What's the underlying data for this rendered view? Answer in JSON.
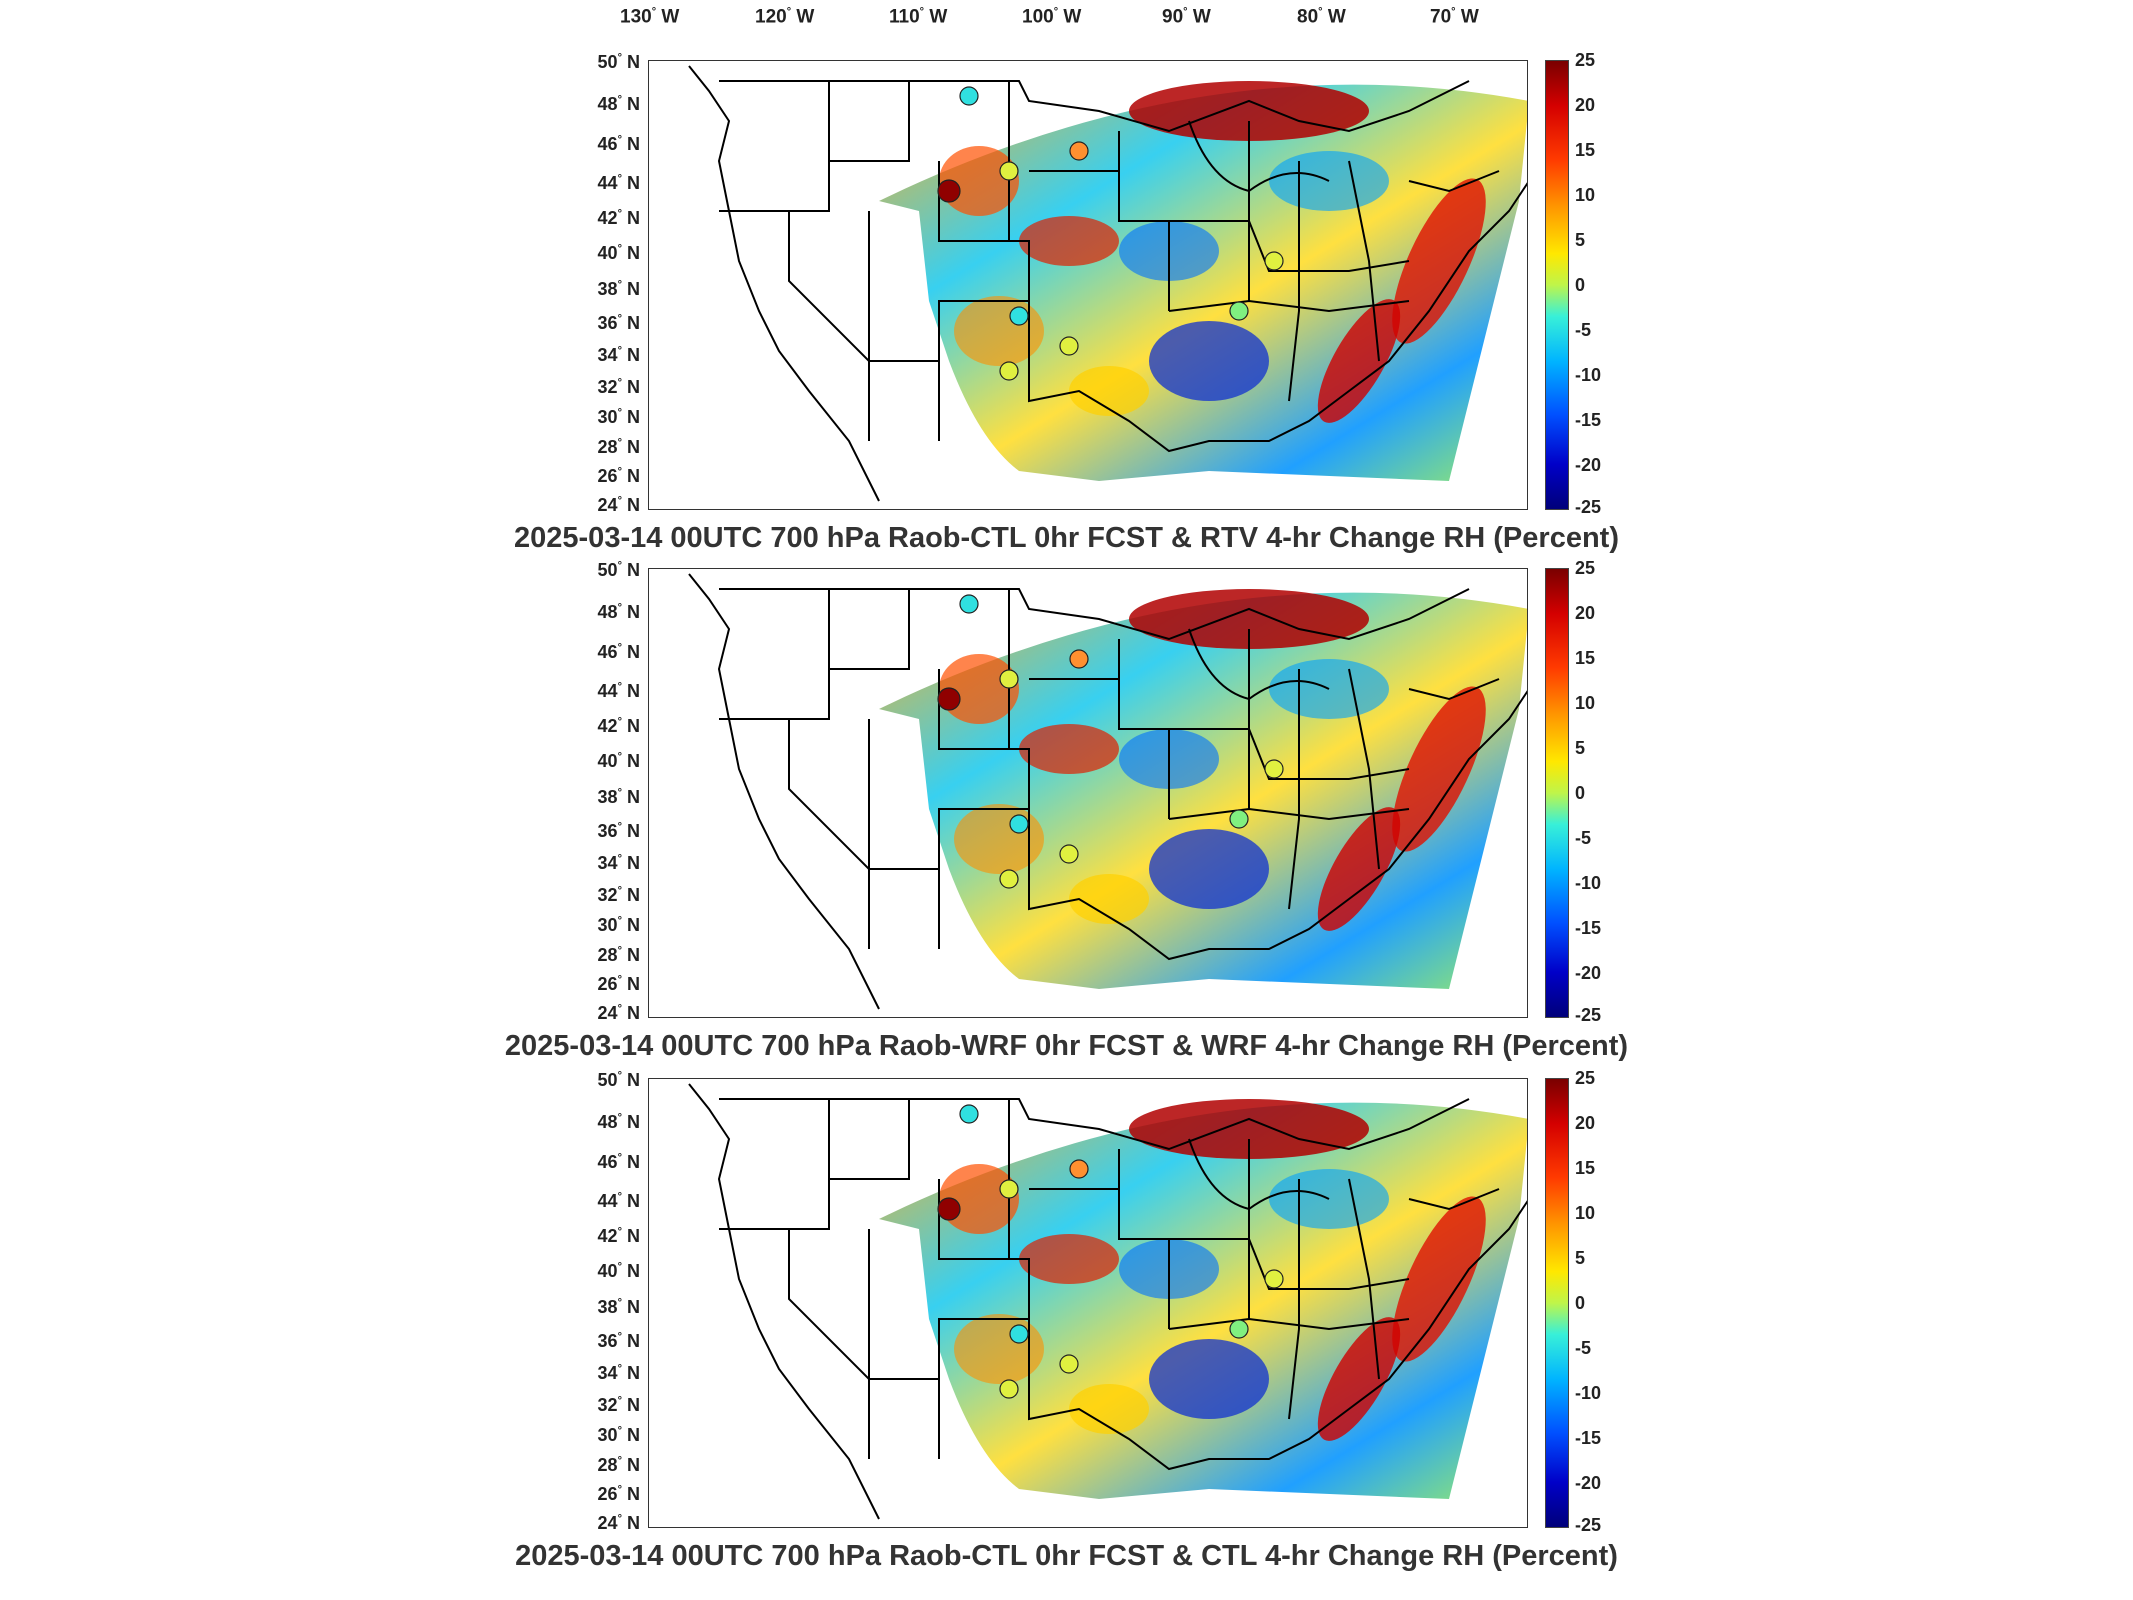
{
  "lon_labels": [
    "130",
    "120",
    "110",
    "100",
    "90",
    "80",
    "70"
  ],
  "lon_suffix": "W",
  "lat_labels": [
    "50",
    "48",
    "46",
    "44",
    "42",
    "40",
    "38",
    "36",
    "34",
    "32",
    "30",
    "28",
    "26",
    "24"
  ],
  "lat_suffix": "N",
  "colorbar": {
    "ticks": [
      "25",
      "20",
      "15",
      "10",
      "5",
      "0",
      "-5",
      "-10",
      "-15",
      "-20",
      "-25"
    ],
    "range": [
      -25,
      25
    ],
    "colors": [
      "#7a0000",
      "#d40000",
      "#ff9a00",
      "#ffe800",
      "#38f0d8",
      "#00b4ff",
      "#0000c8"
    ]
  },
  "panels": [
    {
      "title": "2025-03-14 00UTC 700 hPa Raob-CTL 0hr FCST & RTV 4-hr Change RH (Percent)"
    },
    {
      "title": "2025-03-14 00UTC 700 hPa Raob-WRF 0hr FCST & WRF 4-hr Change RH (Percent)"
    },
    {
      "title": "2025-03-14 00UTC 700 hPa Raob-CTL 0hr FCST & CTL 4-hr Change RH (Percent)"
    }
  ]
}
